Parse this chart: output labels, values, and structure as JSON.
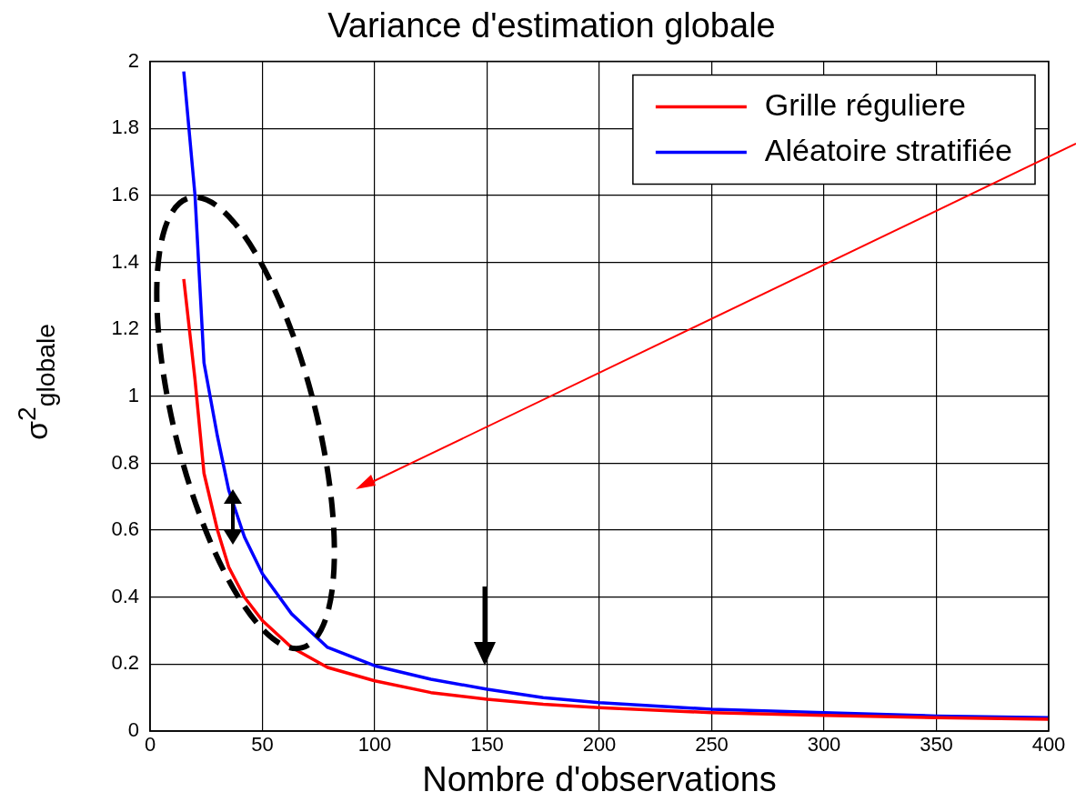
{
  "chart_data": {
    "type": "line",
    "title": "Variance d'estimation globale",
    "xlabel": "Nombre d'observations",
    "ylabel": "σ$^{2}$$_{globale}$",
    "xlim": [
      0,
      400
    ],
    "xticks": [
      0,
      50,
      100,
      150,
      200,
      250,
      300,
      350,
      400
    ],
    "ylim": [
      0,
      2
    ],
    "yticks": [
      0,
      0.2,
      0.4,
      0.6,
      0.8,
      1,
      1.2,
      1.4,
      1.6,
      1.8,
      2
    ],
    "grid": true,
    "legend": "top right",
    "marker": "none",
    "line_style": "solid",
    "series": [
      {
        "name": "Grille réguliere",
        "color": "#ff0000",
        "x": [
          15,
          20,
          24,
          30,
          35,
          42,
          50,
          63,
          79,
          100,
          125,
          150,
          175,
          200,
          250,
          300,
          350,
          400
        ],
        "values": [
          1.35,
          1.05,
          0.77,
          0.6,
          0.49,
          0.4,
          0.33,
          0.25,
          0.19,
          0.15,
          0.115,
          0.095,
          0.08,
          0.07,
          0.055,
          0.047,
          0.04,
          0.035
        ]
      },
      {
        "name": "Aléatoire stratifiée",
        "color": "#0000ff",
        "x": [
          15,
          20,
          24,
          30,
          35,
          42,
          50,
          63,
          79,
          100,
          125,
          150,
          175,
          200,
          250,
          300,
          350,
          400
        ],
        "values": [
          1.97,
          1.6,
          1.1,
          0.88,
          0.72,
          0.58,
          0.47,
          0.35,
          0.25,
          0.195,
          0.155,
          0.125,
          0.1,
          0.085,
          0.065,
          0.055,
          0.045,
          0.04
        ]
      }
    ]
  }
}
